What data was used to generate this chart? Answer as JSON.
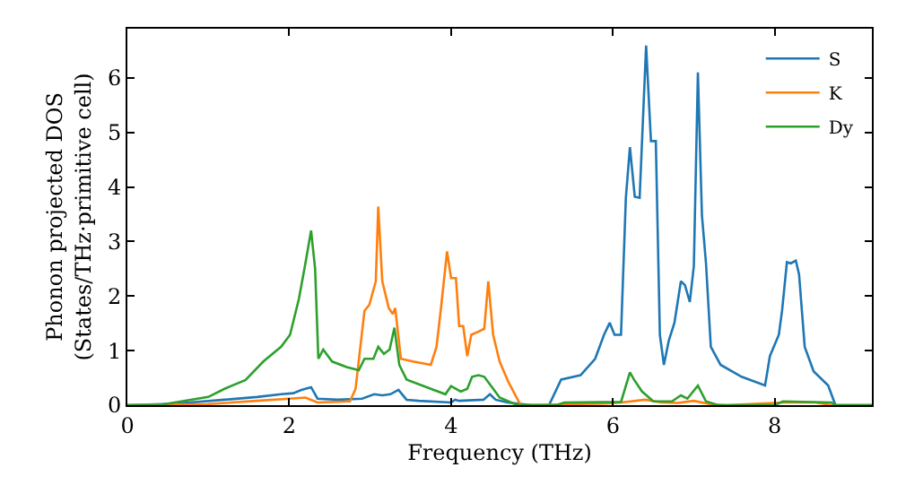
{
  "chart_data": {
    "type": "line",
    "xlabel": "Frequency (THz)",
    "ylabel": "Phonon projected DOS\n(States/THz·primitive cell)",
    "xlim": [
      0,
      9.2
    ],
    "ylim": [
      0,
      6.9
    ],
    "xticks": [
      0,
      2,
      4,
      6,
      8
    ],
    "yticks": [
      0,
      1,
      2,
      3,
      4,
      5,
      6
    ],
    "legend": "top right",
    "marker": "none",
    "line_style": "solid",
    "series": [
      {
        "name": "S",
        "color": "#1f77b4",
        "x": [
          0,
          0.6,
          1.2,
          1.6,
          1.9,
          2.05,
          2.15,
          2.27,
          2.35,
          2.6,
          2.9,
          3.05,
          3.15,
          3.25,
          3.35,
          3.45,
          3.6,
          4.0,
          4.05,
          4.1,
          4.4,
          4.48,
          4.55,
          4.7,
          5.0,
          5.21,
          5.36,
          5.6,
          5.78,
          5.89,
          5.96,
          6.02,
          6.1,
          6.16,
          6.21,
          6.27,
          6.33,
          6.41,
          6.47,
          6.53,
          6.58,
          6.63,
          6.69,
          6.76,
          6.84,
          6.89,
          6.95,
          7.0,
          7.05,
          7.1,
          7.15,
          7.21,
          7.33,
          7.59,
          7.88,
          7.94,
          8.05,
          8.09,
          8.15,
          8.2,
          8.26,
          8.3,
          8.37,
          8.48,
          8.66,
          8.75,
          9.2
        ],
        "values": [
          0,
          0.03,
          0.1,
          0.15,
          0.2,
          0.22,
          0.28,
          0.33,
          0.12,
          0.1,
          0.12,
          0.2,
          0.18,
          0.2,
          0.28,
          0.1,
          0.08,
          0.05,
          0.1,
          0.08,
          0.1,
          0.2,
          0.1,
          0.05,
          0,
          0,
          0.47,
          0.55,
          0.85,
          1.29,
          1.51,
          1.29,
          1.29,
          3.8,
          4.73,
          3.82,
          3.8,
          6.59,
          4.84,
          4.84,
          1.29,
          0.74,
          1.18,
          1.51,
          2.27,
          2.2,
          1.89,
          2.55,
          6.1,
          3.48,
          2.6,
          1.07,
          0.74,
          0.52,
          0.36,
          0.9,
          1.29,
          1.73,
          2.62,
          2.6,
          2.65,
          2.4,
          1.07,
          0.62,
          0.36,
          0,
          0
        ]
      },
      {
        "name": "K",
        "color": "#ff7f0e",
        "x": [
          0,
          1.0,
          1.6,
          2.0,
          2.2,
          2.35,
          2.75,
          2.82,
          2.93,
          2.99,
          3.07,
          3.1,
          3.15,
          3.23,
          3.28,
          3.31,
          3.38,
          3.53,
          3.75,
          3.82,
          3.88,
          3.95,
          4.0,
          4.06,
          4.1,
          4.15,
          4.2,
          4.25,
          4.34,
          4.41,
          4.46,
          4.52,
          4.6,
          4.71,
          4.86,
          5.9,
          6.1,
          6.4,
          6.6,
          6.8,
          7.0,
          7.2,
          7.4,
          8.1,
          8.5,
          8.7,
          9.2
        ],
        "values": [
          0,
          0.02,
          0.08,
          0.12,
          0.14,
          0.05,
          0.07,
          0.3,
          1.73,
          1.84,
          2.27,
          3.64,
          2.27,
          1.78,
          1.67,
          1.78,
          0.85,
          0.8,
          0.74,
          1.07,
          1.84,
          2.82,
          2.33,
          2.33,
          1.45,
          1.45,
          0.9,
          1.29,
          1.35,
          1.4,
          2.27,
          1.29,
          0.8,
          0.42,
          0,
          0.03,
          0.05,
          0.1,
          0.05,
          0.04,
          0.08,
          0.02,
          0,
          0.05,
          0.05,
          0,
          0
        ]
      },
      {
        "name": "Dy",
        "color": "#2ca02c",
        "x": [
          0,
          0.4,
          0.5,
          1.0,
          1.2,
          1.46,
          1.68,
          1.9,
          2.01,
          2.12,
          2.2,
          2.27,
          2.32,
          2.36,
          2.42,
          2.53,
          2.71,
          2.86,
          2.93,
          3.04,
          3.1,
          3.17,
          3.24,
          3.3,
          3.36,
          3.45,
          3.75,
          3.93,
          4.0,
          4.12,
          4.2,
          4.26,
          4.34,
          4.41,
          4.49,
          4.6,
          4.82,
          5.3,
          5.4,
          6.1,
          6.21,
          6.26,
          6.36,
          6.5,
          6.73,
          6.84,
          6.92,
          7.05,
          7.15,
          7.3,
          8.0,
          8.1,
          8.7,
          8.75,
          9.2
        ],
        "values": [
          0,
          0,
          0.03,
          0.15,
          0.3,
          0.46,
          0.8,
          1.07,
          1.29,
          1.95,
          2.6,
          3.2,
          2.5,
          0.85,
          1.02,
          0.8,
          0.7,
          0.64,
          0.85,
          0.85,
          1.07,
          0.94,
          1.02,
          1.42,
          0.74,
          0.47,
          0.3,
          0.2,
          0.35,
          0.25,
          0.3,
          0.52,
          0.55,
          0.52,
          0.36,
          0.14,
          0,
          0,
          0.05,
          0.06,
          0.6,
          0.47,
          0.25,
          0.07,
          0.07,
          0.18,
          0.12,
          0.36,
          0.07,
          0,
          0,
          0.07,
          0.05,
          0,
          0
        ]
      }
    ]
  }
}
